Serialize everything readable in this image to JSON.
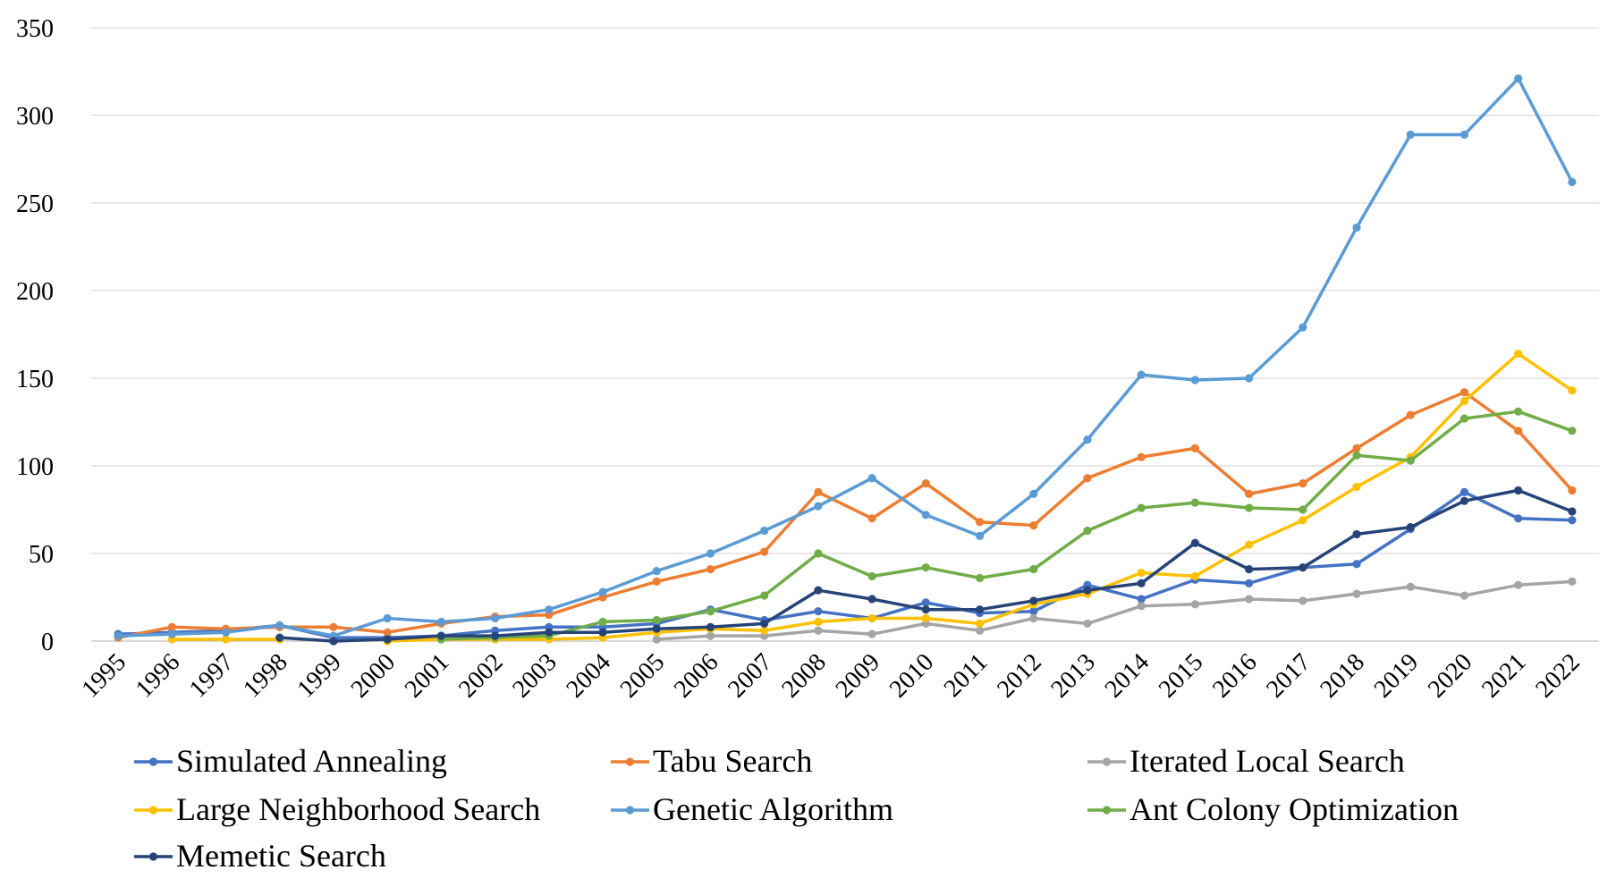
{
  "chart_data": {
    "type": "line",
    "title": "",
    "xlabel": "",
    "ylabel": "",
    "x": [
      "1995",
      "1996",
      "1997",
      "1998",
      "1999",
      "2000",
      "2001",
      "2002",
      "2003",
      "2004",
      "2005",
      "2006",
      "2007",
      "2008",
      "2009",
      "2010",
      "2011",
      "2012",
      "2013",
      "2014",
      "2015",
      "2016",
      "2017",
      "2018",
      "2019",
      "2020",
      "2021",
      "2022"
    ],
    "ylim": [
      0,
      350
    ],
    "yticks": [
      "0",
      "50",
      "100",
      "150",
      "200",
      "250",
      "300",
      "350"
    ],
    "grid": "horizontal",
    "legend_position": "bottom",
    "series": [
      {
        "name": "Simulated Annealing",
        "color": "#4472C4",
        "values": [
          4,
          5,
          6,
          9,
          2,
          2,
          3,
          6,
          8,
          8,
          10,
          18,
          12,
          17,
          13,
          22,
          16,
          17,
          32,
          24,
          35,
          33,
          42,
          44,
          64,
          85,
          70,
          69
        ]
      },
      {
        "name": "Tabu Search",
        "color": "#ED7D31",
        "values": [
          2,
          8,
          7,
          8,
          8,
          5,
          10,
          14,
          15,
          25,
          34,
          41,
          51,
          85,
          70,
          90,
          68,
          66,
          93,
          105,
          110,
          84,
          90,
          110,
          129,
          142,
          120,
          86
        ]
      },
      {
        "name": "Iterated Local Search",
        "color": "#A5A5A5",
        "values": [
          null,
          null,
          null,
          null,
          null,
          null,
          null,
          null,
          null,
          null,
          1,
          3,
          3,
          6,
          4,
          10,
          6,
          13,
          10,
          20,
          21,
          24,
          23,
          27,
          31,
          26,
          32,
          34
        ]
      },
      {
        "name": "Large Neighborhood Search",
        "color": "#FFC000",
        "values": [
          null,
          1,
          1,
          1,
          null,
          0,
          1,
          1,
          1,
          2,
          5,
          7,
          6,
          11,
          13,
          13,
          10,
          21,
          27,
          39,
          37,
          55,
          69,
          88,
          105,
          137,
          164,
          143
        ]
      },
      {
        "name": "Genetic Algorithm",
        "color": "#5B9BD5",
        "values": [
          3,
          4,
          5,
          9,
          3,
          13,
          11,
          13,
          18,
          28,
          40,
          50,
          63,
          77,
          93,
          72,
          60,
          84,
          115,
          152,
          149,
          150,
          179,
          236,
          289,
          289,
          321,
          262
        ]
      },
      {
        "name": "Ant Colony Optimization",
        "color": "#70AD47",
        "values": [
          null,
          null,
          null,
          null,
          null,
          null,
          1,
          2,
          3,
          11,
          12,
          17,
          26,
          50,
          37,
          42,
          36,
          41,
          63,
          76,
          79,
          76,
          75,
          106,
          103,
          127,
          131,
          120
        ]
      },
      {
        "name": "Memetic Search",
        "color": "#264478",
        "values": [
          null,
          null,
          null,
          2,
          0,
          1,
          3,
          3,
          5,
          5,
          7,
          8,
          10,
          29,
          24,
          18,
          18,
          23,
          29,
          33,
          56,
          41,
          42,
          61,
          65,
          80,
          86,
          74
        ]
      }
    ]
  }
}
